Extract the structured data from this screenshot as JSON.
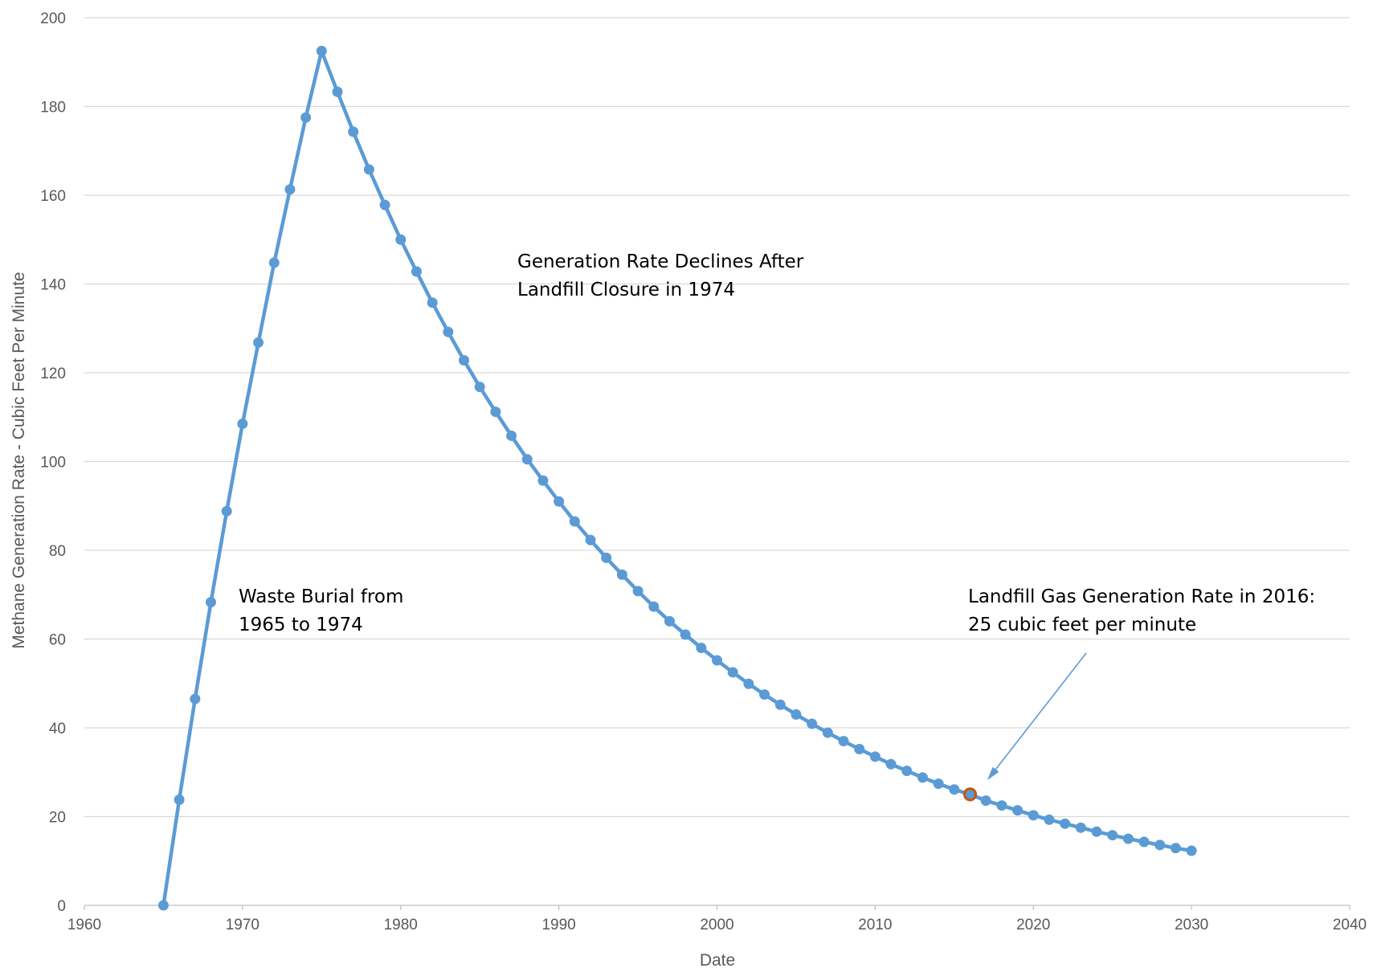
{
  "chart_data": {
    "type": "line",
    "title": "",
    "xlabel": "Date",
    "ylabel": "Methane Generation Rate - Cubic Feet Per Minute",
    "xlim": [
      1960,
      2040
    ],
    "ylim": [
      0,
      200
    ],
    "x_ticks": [
      1960,
      1970,
      1980,
      1990,
      2000,
      2010,
      2020,
      2030,
      2040
    ],
    "y_ticks": [
      0,
      20,
      40,
      60,
      80,
      100,
      120,
      140,
      160,
      180,
      200
    ],
    "grid": "horizontal",
    "legend": "none",
    "series": [
      {
        "color": "#5B9BD5",
        "marker": "circle",
        "x": [
          1965,
          1966,
          1967,
          1968,
          1969,
          1970,
          1971,
          1972,
          1973,
          1974,
          1975,
          1976,
          1977,
          1978,
          1979,
          1980,
          1981,
          1982,
          1983,
          1984,
          1985,
          1986,
          1987,
          1988,
          1989,
          1990,
          1991,
          1992,
          1993,
          1994,
          1995,
          1996,
          1997,
          1998,
          1999,
          2000,
          2001,
          2002,
          2003,
          2004,
          2005,
          2006,
          2007,
          2008,
          2009,
          2010,
          2011,
          2012,
          2013,
          2014,
          2015,
          2016,
          2017,
          2018,
          2019,
          2020,
          2021,
          2022,
          2023,
          2024,
          2025,
          2026,
          2027,
          2028,
          2029,
          2030
        ],
        "y": [
          0,
          23.8,
          46.5,
          68.3,
          88.8,
          108.5,
          126.8,
          144.8,
          161.3,
          177.5,
          192.5,
          183.3,
          174.3,
          165.8,
          157.8,
          150.0,
          142.8,
          135.8,
          129.2,
          122.8,
          116.8,
          111.2,
          105.8,
          100.5,
          95.7,
          91.0,
          86.5,
          82.3,
          78.3,
          74.5,
          70.8,
          67.3,
          64.0,
          61.0,
          58.0,
          55.2,
          52.5,
          49.9,
          47.5,
          45.2,
          43.0,
          40.9,
          38.9,
          37.0,
          35.2,
          33.5,
          31.8,
          30.3,
          28.8,
          27.4,
          26.1,
          25.0,
          23.6,
          22.5,
          21.4,
          20.3,
          19.3,
          18.4,
          17.5,
          16.6,
          15.8,
          15.0,
          14.3,
          13.6,
          12.9,
          12.3
        ]
      }
    ],
    "highlight": {
      "x": 2016,
      "y": 25,
      "color": "#C55A11"
    },
    "annotations": [
      {
        "lines": [
          "Waste Burial from",
          "1965 to 1974"
        ]
      },
      {
        "lines": [
          "Generation Rate Declines After",
          "Landfill Closure in 1974"
        ]
      },
      {
        "lines": [
          "Landfill Gas Generation Rate in 2016:",
          "25 cubic feet per minute"
        ]
      }
    ],
    "colors": {
      "line": "#5B9BD5",
      "grid": "#D9D9D9",
      "axis": "#BFBFBF",
      "arrow": "#5B9BD5"
    }
  }
}
